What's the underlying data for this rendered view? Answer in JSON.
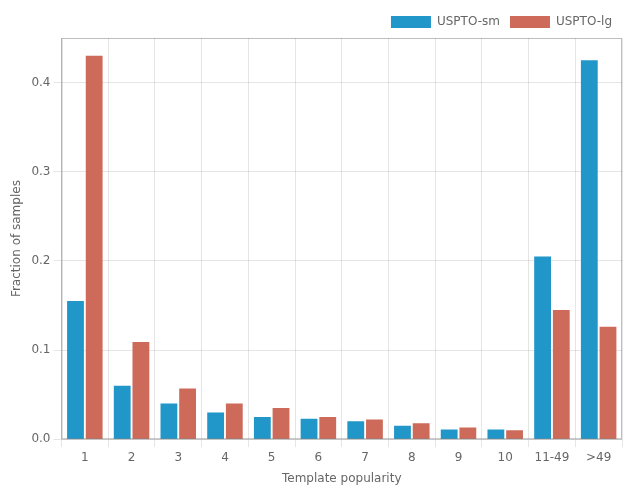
{
  "chart_data": {
    "type": "bar",
    "categories": [
      "1",
      "2",
      "3",
      "4",
      "5",
      "6",
      "7",
      "8",
      "9",
      "10",
      "11-49",
      ">49"
    ],
    "series": [
      {
        "name": "USPTO-sm",
        "color": "#2196C9",
        "values": [
          0.155,
          0.06,
          0.04,
          0.03,
          0.025,
          0.023,
          0.02,
          0.015,
          0.011,
          0.011,
          0.205,
          0.425
        ]
      },
      {
        "name": "USPTO-lg",
        "color": "#CD6A5A",
        "values": [
          0.43,
          0.109,
          0.057,
          0.04,
          0.035,
          0.025,
          0.022,
          0.018,
          0.013,
          0.01,
          0.145,
          0.126
        ]
      }
    ],
    "xlabel": "Template popularity",
    "ylabel": "Fraction of samples",
    "ylim": [
      0,
      0.45
    ],
    "yticks": [
      {
        "value": 0,
        "label": "0.0"
      },
      0.1,
      0.2,
      0.3,
      0.4
    ],
    "grid": true,
    "legend": "upper right"
  }
}
